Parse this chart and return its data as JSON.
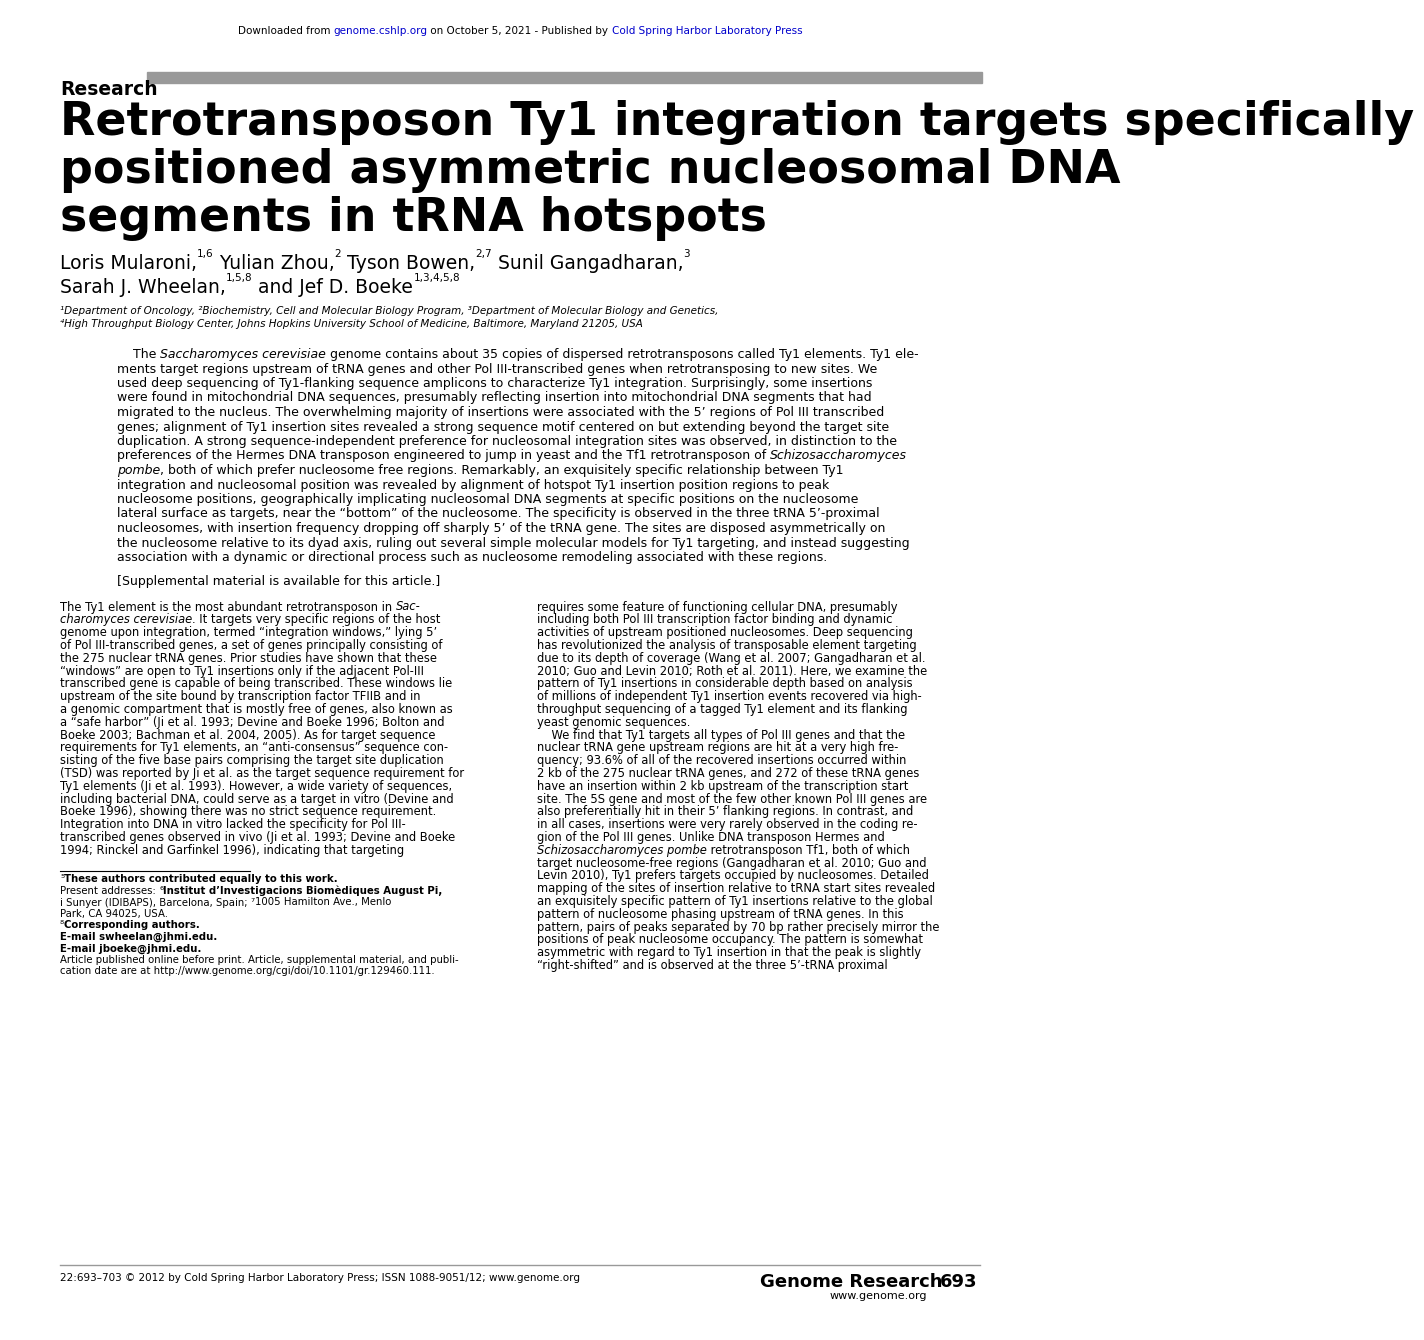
{
  "header_pre": "Downloaded from ",
  "header_link1": "genome.cshlp.org",
  "header_mid": " on October 5, 2021 - Published by ",
  "header_link2": "Cold Spring Harbor Laboratory Press",
  "section_label": "Research",
  "title_line1": "Retrotransposon Ty1 integration targets specifically",
  "title_line2": "positioned asymmetric nucleosomal DNA",
  "title_line3": "segments in tRNA hotspots",
  "affil1": "¹Department of Oncology, ²Biochemistry, Cell and Molecular Biology Program, ³Department of Molecular Biology and Genetics,",
  "affil2": "⁴High Throughput Biology Center, Johns Hopkins University School of Medicine, Baltimore, Maryland 21205, USA",
  "supplemental": "[Supplemental material is available for this article.]",
  "footer_left": "22:693–703 © 2012 by Cold Spring Harbor Laboratory Press; ISSN 1088-9051/12; www.genome.org",
  "footer_right1": "Genome Research",
  "footer_right2": "693",
  "footer_right3": "www.genome.org",
  "bg_color": "#ffffff",
  "text_color": "#000000",
  "link_color": "#0000cc",
  "bar_color": "#999999"
}
